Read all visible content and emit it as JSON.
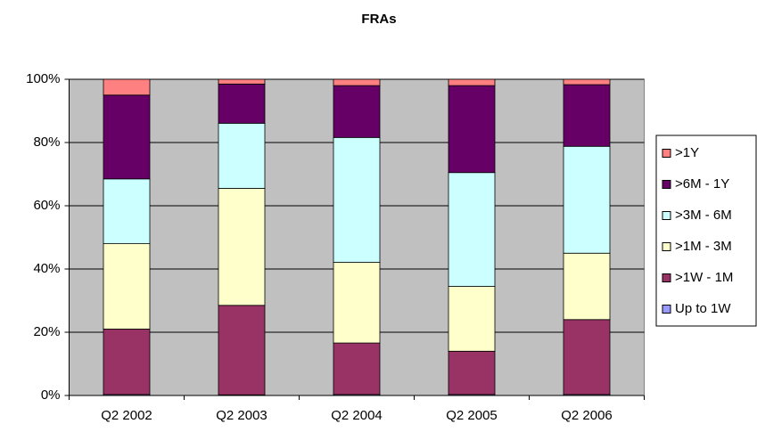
{
  "chart_data": {
    "type": "stacked_bar_100",
    "title": "FRAs",
    "categories": [
      "Q2 2002",
      "Q2 2003",
      "Q2 2004",
      "Q2 2005",
      "Q2 2006"
    ],
    "series": [
      {
        "name": "Up to 1W",
        "color": "#9999ff",
        "values": [
          0.3,
          0.2,
          0.3,
          0.3,
          0.3
        ]
      },
      {
        "name": ">1W - 1M",
        "color": "#993366",
        "values": [
          20.7,
          28.3,
          16.3,
          13.7,
          23.7
        ]
      },
      {
        "name": ">1M - 3M",
        "color": "#ffffcc",
        "values": [
          27,
          37,
          25.5,
          20.5,
          21
        ]
      },
      {
        "name": ">3M - 6M",
        "color": "#ccffff",
        "values": [
          20.5,
          20.6,
          39.5,
          36,
          33.8
        ]
      },
      {
        "name": ">6M - 1Y",
        "color": "#660066",
        "values": [
          26.5,
          12.4,
          16.4,
          27.5,
          19.5
        ]
      },
      {
        "name": ">1Y",
        "color": "#ff8080",
        "values": [
          5,
          1.5,
          2,
          2,
          1.7
        ]
      }
    ],
    "ylim": [
      0,
      100
    ],
    "yticks": [
      {
        "value": 0,
        "label": "0%"
      },
      {
        "value": 20,
        "label": "20%"
      },
      {
        "value": 40,
        "label": "40%"
      },
      {
        "value": 60,
        "label": "60%"
      },
      {
        "value": 80,
        "label": "80%"
      },
      {
        "value": 100,
        "label": "100%"
      }
    ],
    "grid": true,
    "legend": "right",
    "plot_background": "#c0c0c0"
  }
}
